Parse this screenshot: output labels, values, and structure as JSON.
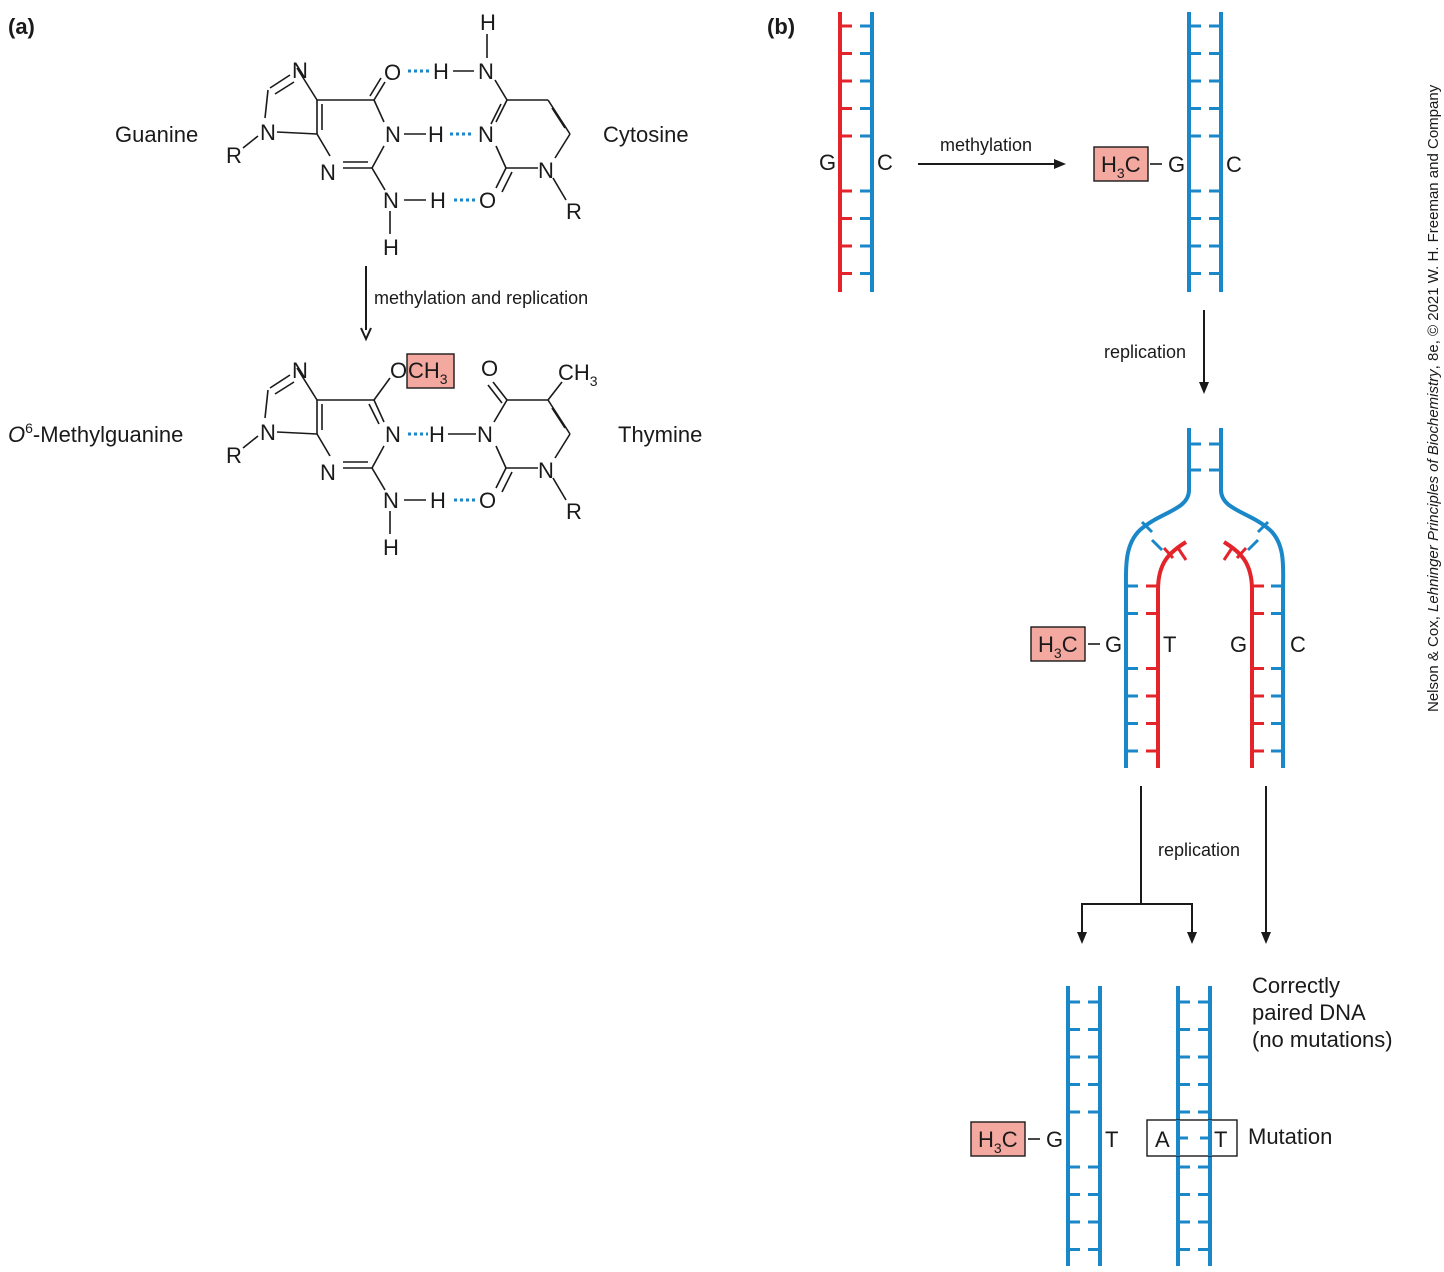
{
  "panel_a": {
    "label": "(a)",
    "top": {
      "left_name": "Guanine",
      "right_name": "Cytosine",
      "atoms": {
        "n7": "N",
        "n9": "N",
        "r_left": "R",
        "n3": "N",
        "o6": "O",
        "n1": "N",
        "h1": "H",
        "n2": "N",
        "h2a": "H",
        "h2b": "H",
        "h4top": "H",
        "n4": "N",
        "h4": "H",
        "c_n3": "N",
        "c_o2": "O",
        "c_n1": "N",
        "r_right": "R"
      }
    },
    "arrow_label": "methylation and replication",
    "bottom": {
      "left_name_italic": "O",
      "left_name_sup": "6",
      "left_name_rest": "-Methylguanine",
      "right_name": "Thymine",
      "methyl_box": "CH",
      "methyl_sub": "3",
      "atoms": {
        "n7": "N",
        "n9": "N",
        "r_left": "R",
        "n3": "N",
        "o6": "O",
        "n1": "N",
        "h3": "H",
        "n2": "N",
        "h2a": "H",
        "h2b": "H",
        "t_o4": "O",
        "t_ch3": "CH",
        "t_ch3_sub": "3",
        "t_n3": "N",
        "t_o2": "O",
        "t_n1": "N",
        "r_right": "R"
      }
    }
  },
  "panel_b": {
    "label": "(b)",
    "step1": {
      "left_base": "G",
      "right_base": "C",
      "arrow_label": "methylation"
    },
    "step2": {
      "methyl": "H",
      "methyl_sub": "3",
      "methyl_c": "C",
      "left_base": "G",
      "right_base": "C"
    },
    "arrow2_label": "replication",
    "fork": {
      "methyl": "H",
      "methyl_sub": "3",
      "methyl_c": "C",
      "left_pair_g": "G",
      "left_pair_t": "T",
      "right_pair_g": "G",
      "right_pair_c": "C"
    },
    "arrow3_label": "replication",
    "result": {
      "correct_lines": [
        "Correctly",
        "paired DNA",
        "(no mutations)"
      ],
      "methyl": "H",
      "methyl_sub": "3",
      "methyl_c": "C",
      "left_g": "G",
      "left_t": "T",
      "mut_a": "A",
      "mut_t": "T",
      "mutation_label": "Mutation"
    }
  },
  "credit": {
    "prefix": "Nelson & Cox, ",
    "book": "Lehninger Principles of Biochemistry",
    "suffix": ", 8e, © 2021 W. H. Freeman and Company"
  },
  "colors": {
    "parent_strand": "#1a87c9",
    "new_strand": "#e3242b",
    "methyl_highlight": "#f4a9a0"
  }
}
